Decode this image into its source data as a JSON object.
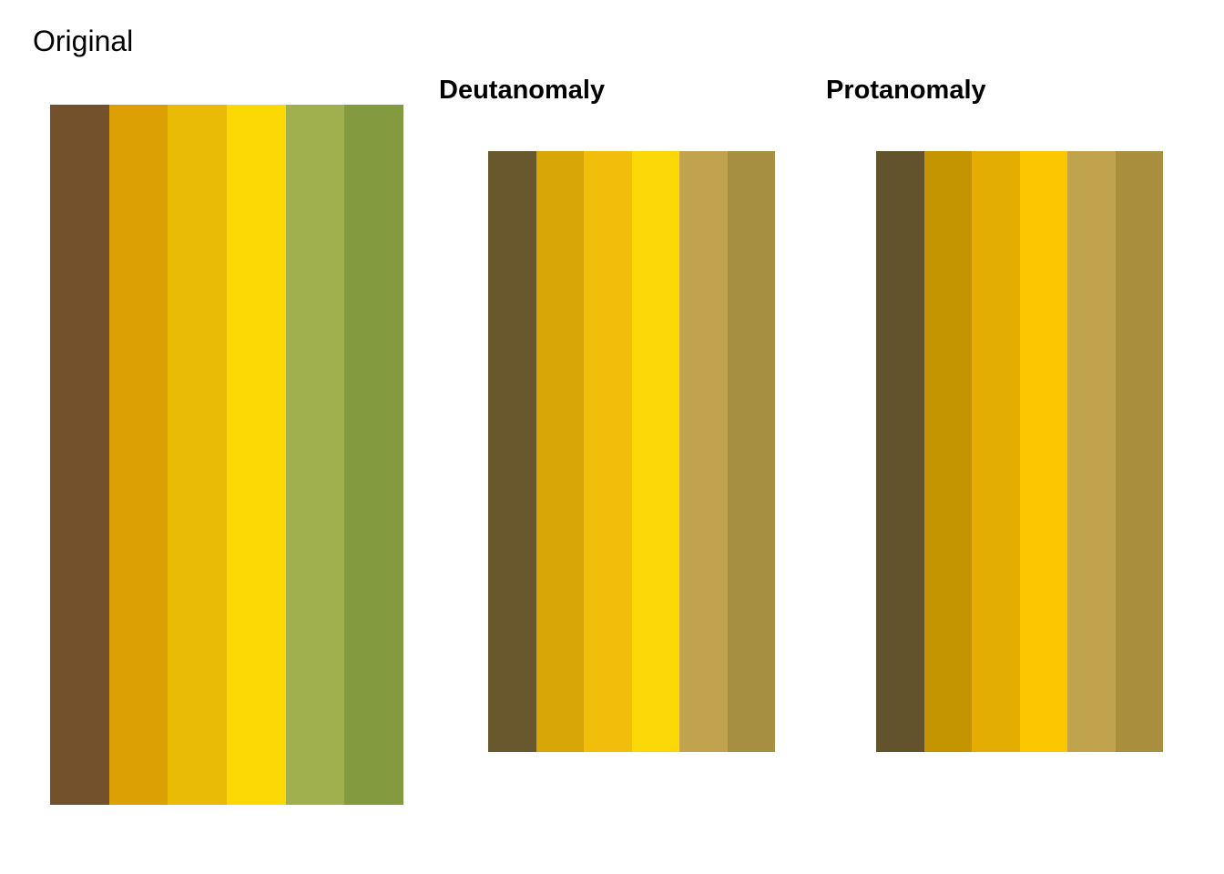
{
  "chart_data": [
    {
      "type": "heatmap",
      "title": "Original",
      "colors": [
        "#74512d",
        "#dca005",
        "#e9bb06",
        "#fcd804",
        "#a1b04e",
        "#839b3e"
      ]
    },
    {
      "type": "heatmap",
      "title": "Deutanomaly",
      "colors": [
        "#69582d",
        "#d8a707",
        "#f0be0b",
        "#fcd808",
        "#c0a24f",
        "#a78f42"
      ]
    },
    {
      "type": "heatmap",
      "title": "Protanomaly",
      "colors": [
        "#62532d",
        "#c49501",
        "#e3ad01",
        "#fdc700",
        "#c1a24d",
        "#a98f3d"
      ]
    }
  ]
}
